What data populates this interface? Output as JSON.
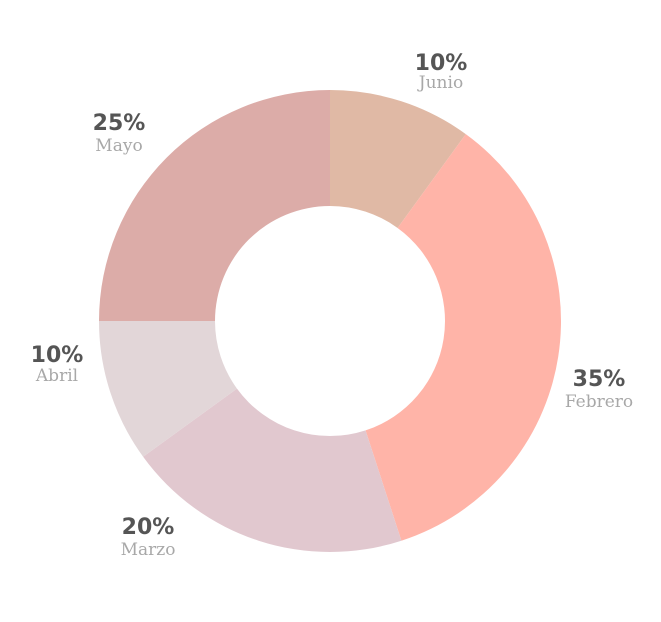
{
  "chart_data": {
    "type": "pie",
    "variant": "donut",
    "title": "",
    "legend": "none",
    "slices": [
      {
        "label": "Junio",
        "percent_label": "10%",
        "value": 10,
        "color": "#e0b9a5"
      },
      {
        "label": "Febrero",
        "percent_label": "35%",
        "value": 35,
        "color": "#ffb4a8"
      },
      {
        "label": "Marzo",
        "percent_label": "20%",
        "value": 20,
        "color": "#e1c8cf"
      },
      {
        "label": "Abril",
        "percent_label": "10%",
        "value": 10,
        "color": "#e2d6d8"
      },
      {
        "label": "Mayo",
        "percent_label": "25%",
        "value": 25,
        "color": "#dcaca8"
      }
    ]
  }
}
